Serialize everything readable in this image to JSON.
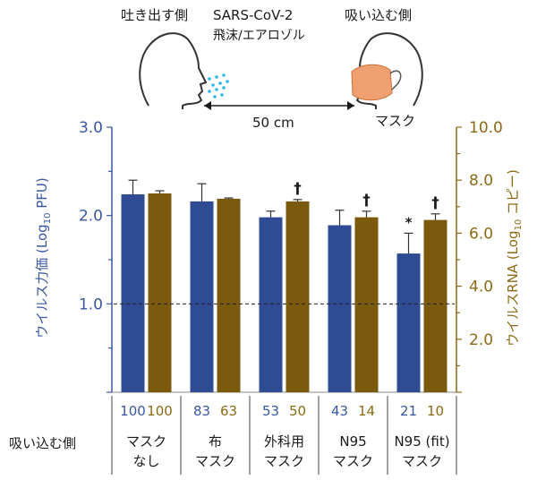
{
  "illustration": {
    "exhaler_label": "吐き出す側",
    "inhaler_label": "吸い込む側",
    "virus_label": "SARS-CoV-2",
    "aerosol_label": "飛沫/エアロゾル",
    "distance_label": "50 cm",
    "mask_label": "マスク"
  },
  "table": {
    "row_label": "吸い込む側"
  },
  "colors": {
    "pfu_bar": "#2f4b93",
    "rna_bar": "#7b5a0e",
    "left_axis": "#3a57a0",
    "right_axis": "#8a6a16",
    "aerosol": "#29b6e6",
    "mask": "#f0a070"
  },
  "chart_data": {
    "type": "bar",
    "categories": [
      {
        "line1": "マスク",
        "line2": "なし"
      },
      {
        "line1": "布",
        "line2": "マスク"
      },
      {
        "line1": "外科用",
        "line2": "マスク"
      },
      {
        "line1": "N95",
        "line2": "マスク"
      },
      {
        "line1": "N95 (fit)",
        "line2": "マスク"
      }
    ],
    "ylabel_left": "ウイルス力価 (Log10 PFU)",
    "ylabel_right": "ウイルスRNA (Log10 コピー)",
    "ylim_left": [
      0,
      3.0
    ],
    "ylim_right": [
      0,
      10.0
    ],
    "yticks_left": [
      "3.0",
      "2.0",
      "1.0"
    ],
    "yticks_right": [
      "10.0",
      "8.0",
      "6.0",
      "4.0",
      "2.0"
    ],
    "reference_line": {
      "axis": "left",
      "value": 1.0,
      "style": "dashed"
    },
    "series": [
      {
        "axis": "left",
        "values": [
          2.24,
          2.16,
          1.98,
          1.89,
          1.57
        ],
        "errors": [
          0.16,
          0.2,
          0.07,
          0.17,
          0.23
        ],
        "percent_labels": [
          "100",
          "83",
          "53",
          "43",
          "21"
        ],
        "markers": [
          "",
          "",
          "",
          "",
          "*"
        ]
      },
      {
        "axis": "right",
        "values": [
          7.5,
          7.3,
          7.2,
          6.6,
          6.5
        ],
        "errors": [
          0.1,
          0.03,
          0.07,
          0.23,
          0.23
        ],
        "percent_labels": [
          "100",
          "63",
          "50",
          "14",
          "10"
        ],
        "markers": [
          "",
          "",
          "†",
          "†",
          "†"
        ]
      }
    ]
  }
}
